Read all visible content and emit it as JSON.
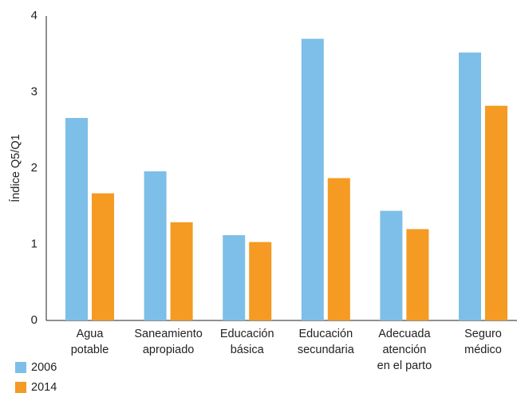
{
  "chart_data": {
    "type": "bar",
    "ylabel": "Índice Q5/Q1",
    "xlabel": "",
    "ylim": [
      0,
      4
    ],
    "yticks": [
      "0",
      "1",
      "2",
      "3",
      "4"
    ],
    "grid": false,
    "legend_position": "bottom-left",
    "categories": [
      [
        "Agua",
        "potable"
      ],
      [
        "Saneamiento",
        "apropiado"
      ],
      [
        "Educación",
        "básica"
      ],
      [
        "Educación",
        "secundaria"
      ],
      [
        "Adecuada",
        "atención",
        "en el parto"
      ],
      [
        "Seguro",
        "médico"
      ]
    ],
    "series": [
      {
        "name": "2006",
        "color": "#7dbfe8",
        "values": [
          2.66,
          1.96,
          1.12,
          3.7,
          1.44,
          3.52
        ]
      },
      {
        "name": "2014",
        "color": "#f59a23",
        "values": [
          1.67,
          1.29,
          1.03,
          1.87,
          1.2,
          2.82
        ]
      }
    ]
  }
}
